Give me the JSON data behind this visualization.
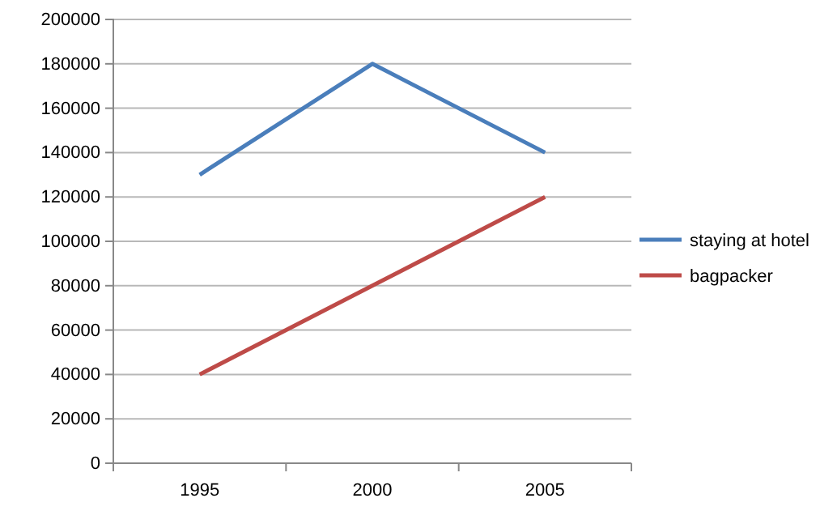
{
  "chart_data": {
    "type": "line",
    "categories": [
      "1995",
      "2000",
      "2005"
    ],
    "series": [
      {
        "name": "staying at hotel",
        "color": "#4a7ebb",
        "values": [
          130000,
          180000,
          140000
        ]
      },
      {
        "name": "bagpacker",
        "color": "#be4b48",
        "values": [
          40000,
          80000,
          120000
        ]
      }
    ],
    "ylim": [
      0,
      200000
    ],
    "yticks": [
      0,
      20000,
      40000,
      60000,
      80000,
      100000,
      120000,
      140000,
      160000,
      180000,
      200000
    ],
    "grid": "y",
    "legend": "right",
    "marker": "none",
    "line_style": "solid"
  }
}
